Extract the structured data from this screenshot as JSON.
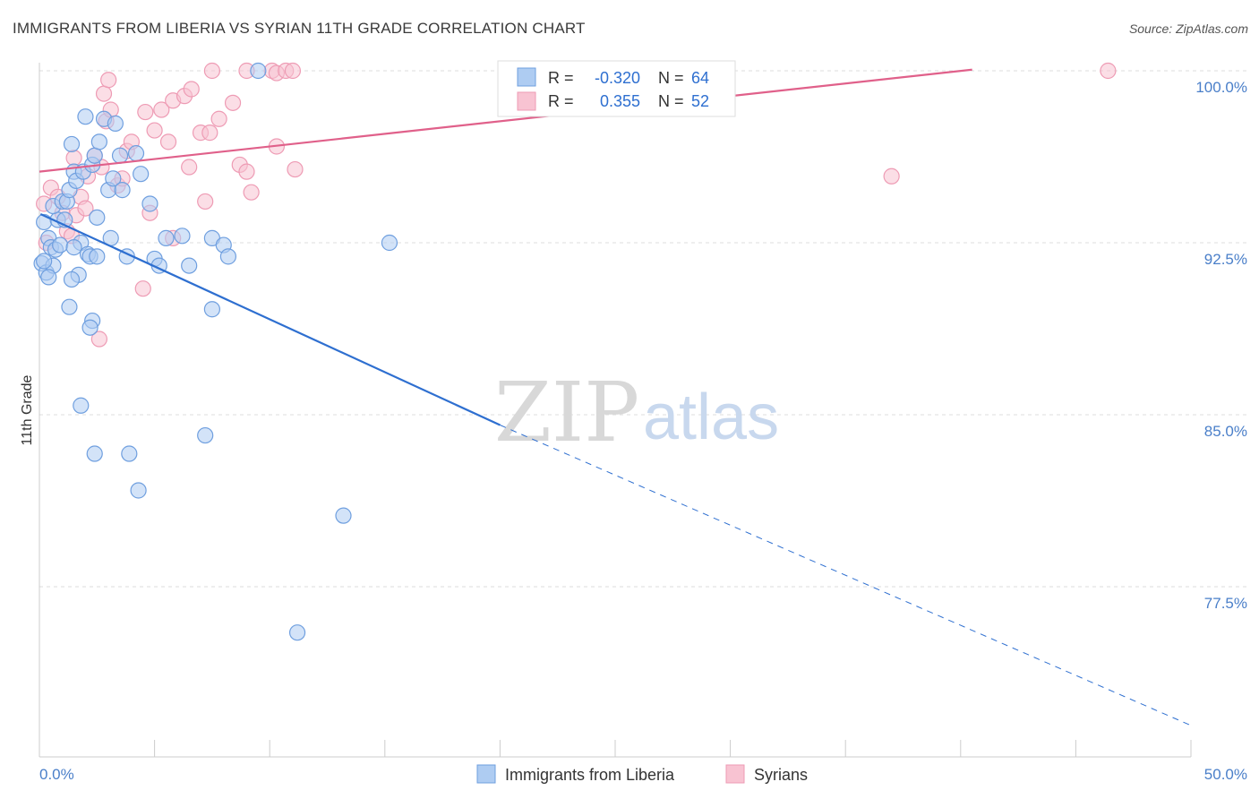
{
  "header": {
    "title": "IMMIGRANTS FROM LIBERIA VS SYRIAN 11TH GRADE CORRELATION CHART",
    "source": "Source: ZipAtlas.com"
  },
  "watermark": {
    "zip": "ZIP",
    "atlas": "atlas"
  },
  "stats": {
    "rows": [
      {
        "r_label": "R =",
        "r": "-0.320",
        "n_label": "N =",
        "n": "64"
      },
      {
        "r_label": "R =",
        "r": "0.355",
        "n_label": "N =",
        "n": "52"
      }
    ]
  },
  "colors": {
    "liberia_fill": "#aeccf2",
    "liberia_stroke": "#6f9fdf",
    "liberia_line": "#2e6fd0",
    "syrians_fill": "#f8c3d2",
    "syrians_stroke": "#ee9bb4",
    "syrians_line": "#e0608a",
    "axis_text": "#4a7fc9",
    "grid": "#dddddd"
  },
  "chart_data": {
    "type": "scatter",
    "title": "IMMIGRANTS FROM LIBERIA VS SYRIAN 11TH GRADE CORRELATION CHART",
    "xlabel": "",
    "ylabel": "11th Grade",
    "xlim": [
      0,
      50
    ],
    "ylim": [
      71.5,
      100.9
    ],
    "x_tick_labels": [
      "0.0%",
      "50.0%"
    ],
    "y_ticks": [
      77.5,
      85.0,
      92.5,
      100.0
    ],
    "y_tick_labels": [
      "77.5%",
      "85.0%",
      "92.5%",
      "100.0%"
    ],
    "grid": true,
    "legend_position": "bottom-center",
    "series": [
      {
        "name": "Immigrants from Liberia",
        "r": -0.32,
        "n": 64,
        "trend": {
          "x0": 0.05,
          "y0": 93.75,
          "x1": 20.0,
          "y1": 84.55,
          "dashed_to_x": 50.0,
          "dashed_to_y": 71.45
        },
        "points": [
          [
            0.2,
            93.4
          ],
          [
            0.4,
            92.7
          ],
          [
            0.1,
            91.6
          ],
          [
            0.3,
            91.2
          ],
          [
            0.5,
            92.3
          ],
          [
            0.6,
            91.5
          ],
          [
            0.7,
            92.2
          ],
          [
            0.8,
            93.5
          ],
          [
            0.6,
            94.1
          ],
          [
            0.9,
            92.4
          ],
          [
            1.0,
            94.3
          ],
          [
            1.1,
            93.5
          ],
          [
            1.2,
            94.3
          ],
          [
            1.3,
            94.8
          ],
          [
            1.4,
            96.8
          ],
          [
            1.5,
            95.6
          ],
          [
            1.6,
            95.2
          ],
          [
            1.8,
            92.5
          ],
          [
            1.9,
            95.6
          ],
          [
            1.5,
            92.3
          ],
          [
            2.0,
            98.0
          ],
          [
            2.3,
            95.9
          ],
          [
            2.4,
            96.3
          ],
          [
            2.6,
            96.9
          ],
          [
            2.8,
            97.9
          ],
          [
            3.0,
            94.8
          ],
          [
            3.2,
            95.3
          ],
          [
            3.3,
            97.7
          ],
          [
            3.5,
            96.3
          ],
          [
            3.6,
            94.8
          ],
          [
            2.5,
            93.6
          ],
          [
            3.1,
            92.7
          ],
          [
            2.1,
            92.0
          ],
          [
            2.2,
            91.9
          ],
          [
            2.5,
            91.9
          ],
          [
            1.7,
            91.1
          ],
          [
            1.4,
            90.9
          ],
          [
            0.4,
            91.0
          ],
          [
            0.2,
            91.7
          ],
          [
            3.8,
            91.9
          ],
          [
            4.2,
            96.4
          ],
          [
            4.4,
            95.5
          ],
          [
            4.8,
            94.2
          ],
          [
            5.0,
            91.8
          ],
          [
            5.2,
            91.5
          ],
          [
            5.5,
            92.7
          ],
          [
            6.2,
            92.8
          ],
          [
            6.5,
            91.5
          ],
          [
            7.5,
            92.7
          ],
          [
            8.0,
            92.4
          ],
          [
            8.2,
            91.9
          ],
          [
            9.5,
            100.0
          ],
          [
            1.3,
            89.7
          ],
          [
            2.3,
            89.1
          ],
          [
            2.2,
            88.8
          ],
          [
            7.5,
            89.6
          ],
          [
            1.8,
            85.4
          ],
          [
            2.4,
            83.3
          ],
          [
            3.9,
            83.3
          ],
          [
            7.2,
            84.1
          ],
          [
            4.3,
            81.7
          ],
          [
            13.2,
            80.6
          ],
          [
            11.2,
            75.5
          ],
          [
            15.2,
            92.5
          ]
        ]
      },
      {
        "name": "Syrians",
        "r": 0.355,
        "n": 52,
        "trend": {
          "x0": 0.0,
          "y0": 95.6,
          "x1": 40.5,
          "y1": 100.05
        },
        "points": [
          [
            0.2,
            94.2
          ],
          [
            0.3,
            92.5
          ],
          [
            0.5,
            94.9
          ],
          [
            0.8,
            94.5
          ],
          [
            1.0,
            93.8
          ],
          [
            1.2,
            93.0
          ],
          [
            1.4,
            92.8
          ],
          [
            1.6,
            93.7
          ],
          [
            1.8,
            94.5
          ],
          [
            2.0,
            94.0
          ],
          [
            1.5,
            96.2
          ],
          [
            2.1,
            95.4
          ],
          [
            2.4,
            96.3
          ],
          [
            2.7,
            95.8
          ],
          [
            2.9,
            97.8
          ],
          [
            3.1,
            98.3
          ],
          [
            3.4,
            95.0
          ],
          [
            3.6,
            95.3
          ],
          [
            3.8,
            96.5
          ],
          [
            4.0,
            96.9
          ],
          [
            2.8,
            99.0
          ],
          [
            3.0,
            99.6
          ],
          [
            4.6,
            98.2
          ],
          [
            5.0,
            97.4
          ],
          [
            5.3,
            98.3
          ],
          [
            5.6,
            96.9
          ],
          [
            5.8,
            98.7
          ],
          [
            6.3,
            98.9
          ],
          [
            6.6,
            99.2
          ],
          [
            6.5,
            95.8
          ],
          [
            7.0,
            97.3
          ],
          [
            7.4,
            97.3
          ],
          [
            7.8,
            97.9
          ],
          [
            8.4,
            98.6
          ],
          [
            7.2,
            94.3
          ],
          [
            8.7,
            95.9
          ],
          [
            9.0,
            95.6
          ],
          [
            9.2,
            94.7
          ],
          [
            10.3,
            96.7
          ],
          [
            11.1,
            95.7
          ],
          [
            7.5,
            100.0
          ],
          [
            9.0,
            100.0
          ],
          [
            10.1,
            100.0
          ],
          [
            10.3,
            99.9
          ],
          [
            10.7,
            100.0
          ],
          [
            11.0,
            100.0
          ],
          [
            4.8,
            93.8
          ],
          [
            5.8,
            92.7
          ],
          [
            4.5,
            90.5
          ],
          [
            2.6,
            88.3
          ],
          [
            37.0,
            95.4
          ],
          [
            46.4,
            100.0
          ]
        ]
      }
    ]
  },
  "legend": {
    "items": [
      {
        "label": "Immigrants from Liberia"
      },
      {
        "label": "Syrians"
      }
    ]
  }
}
